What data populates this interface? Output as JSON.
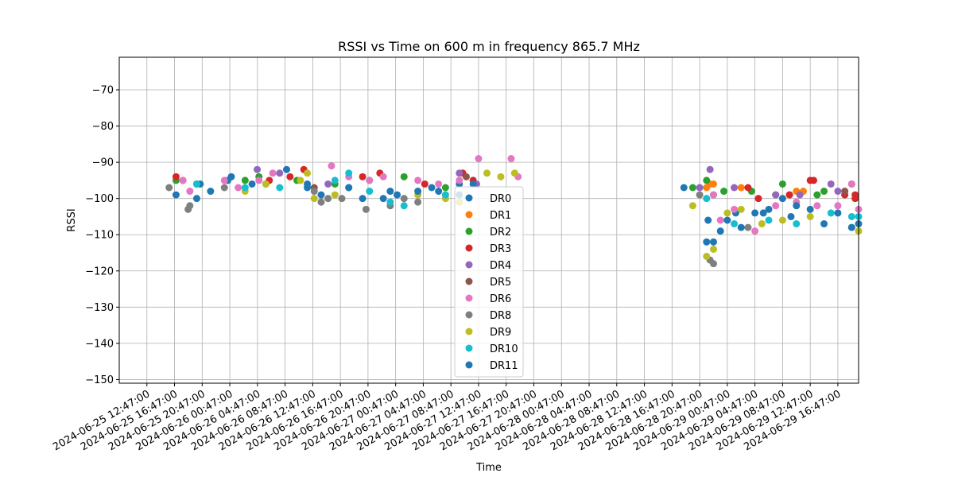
{
  "chart_data": {
    "type": "scatter",
    "title": "RSSI vs Time on 600 m in frequency 865.7 MHz",
    "xlabel": "Time",
    "ylabel": "RSSI",
    "grid": true,
    "legend_position": "center",
    "xlim": [
      "2024-06-25 08:47:00",
      "2024-06-29 19:47:00"
    ],
    "ylim": [
      -151,
      -61
    ],
    "yticks": [
      -150,
      -140,
      -130,
      -120,
      -110,
      -100,
      -90,
      -80,
      -70
    ],
    "xticks": [
      "2024-06-25 12:47:00",
      "2024-06-25 16:47:00",
      "2024-06-25 20:47:00",
      "2024-06-26 00:47:00",
      "2024-06-26 04:47:00",
      "2024-06-26 08:47:00",
      "2024-06-26 12:47:00",
      "2024-06-26 16:47:00",
      "2024-06-26 20:47:00",
      "2024-06-27 00:47:00",
      "2024-06-27 04:47:00",
      "2024-06-27 08:47:00",
      "2024-06-27 12:47:00",
      "2024-06-27 16:47:00",
      "2024-06-27 20:47:00",
      "2024-06-28 00:47:00",
      "2024-06-28 04:47:00",
      "2024-06-28 08:47:00",
      "2024-06-28 12:47:00",
      "2024-06-28 16:47:00",
      "2024-06-28 20:47:00",
      "2024-06-29 00:47:00",
      "2024-06-29 04:47:00",
      "2024-06-29 08:47:00",
      "2024-06-29 12:47:00",
      "2024-06-29 16:47:00"
    ],
    "series": [
      {
        "name": "DR0",
        "color": "#1f77b4",
        "points": [
          [
            "2024-06-25 20:30:00",
            -96
          ],
          [
            "2024-06-26 00:30:00",
            -95
          ],
          [
            "2024-06-26 06:00:00",
            -96
          ],
          [
            "2024-06-26 12:00:00",
            -97
          ],
          [
            "2024-06-26 18:00:00",
            -97
          ],
          [
            "2024-06-27 00:00:00",
            -98
          ],
          [
            "2024-06-27 06:00:00",
            -97
          ],
          [
            "2024-06-27 10:00:00",
            -96
          ],
          [
            "2024-06-28 18:30:00",
            -97
          ],
          [
            "2024-06-28 22:00:00",
            -106
          ],
          [
            "2024-06-29 02:00:00",
            -104
          ],
          [
            "2024-06-29 06:00:00",
            -104
          ],
          [
            "2024-06-29 10:00:00",
            -105
          ]
        ]
      },
      {
        "name": "DR1",
        "color": "#ff7f0e",
        "points": [
          [
            "2024-06-28 21:47:00",
            -97
          ],
          [
            "2024-06-28 22:17:00",
            -96
          ],
          [
            "2024-06-28 22:47:00",
            -96
          ],
          [
            "2024-06-29 02:47:00",
            -97
          ],
          [
            "2024-06-29 09:47:00",
            -99
          ],
          [
            "2024-06-29 10:47:00",
            -98
          ],
          [
            "2024-06-29 11:47:00",
            -98
          ]
        ]
      },
      {
        "name": "DR2",
        "color": "#2ca02c",
        "points": [
          [
            "2024-06-25 17:00:00",
            -95
          ],
          [
            "2024-06-25 20:00:00",
            -96
          ],
          [
            "2024-06-26 03:00:00",
            -95
          ],
          [
            "2024-06-26 05:00:00",
            -94
          ],
          [
            "2024-06-26 10:30:00",
            -95
          ],
          [
            "2024-06-26 16:00:00",
            -96
          ],
          [
            "2024-06-26 21:00:00",
            -95
          ],
          [
            "2024-06-27 02:00:00",
            -94
          ],
          [
            "2024-06-27 08:00:00",
            -97
          ],
          [
            "2024-06-27 12:00:00",
            -95
          ],
          [
            "2024-06-28 19:47:00",
            -97
          ],
          [
            "2024-06-28 21:47:00",
            -95
          ],
          [
            "2024-06-28 22:47:00",
            -99
          ],
          [
            "2024-06-29 00:17:00",
            -98
          ],
          [
            "2024-06-29 04:17:00",
            -98
          ],
          [
            "2024-06-29 07:47:00",
            -99
          ],
          [
            "2024-06-29 08:47:00",
            -96
          ],
          [
            "2024-06-29 13:47:00",
            -99
          ],
          [
            "2024-06-29 14:47:00",
            -98
          ]
        ]
      },
      {
        "name": "DR3",
        "color": "#d62728",
        "points": [
          [
            "2024-06-25 17:00:00",
            -94
          ],
          [
            "2024-06-26 06:30:00",
            -95
          ],
          [
            "2024-06-26 09:30:00",
            -94
          ],
          [
            "2024-06-26 11:30:00",
            -92
          ],
          [
            "2024-06-26 20:00:00",
            -94
          ],
          [
            "2024-06-26 22:30:00",
            -93
          ],
          [
            "2024-06-27 05:00:00",
            -96
          ],
          [
            "2024-06-27 10:30:00",
            -93
          ],
          [
            "2024-06-27 12:00:00",
            -95
          ],
          [
            "2024-06-29 03:47:00",
            -97
          ],
          [
            "2024-06-29 05:17:00",
            -100
          ],
          [
            "2024-06-29 09:47:00",
            -99
          ],
          [
            "2024-06-29 12:47:00",
            -95
          ],
          [
            "2024-06-29 13:17:00",
            -95
          ],
          [
            "2024-06-29 17:47:00",
            -99
          ],
          [
            "2024-06-29 18:47:00",
            -96
          ],
          [
            "2024-06-29 19:17:00",
            -99
          ],
          [
            "2024-06-29 19:17:00",
            -100
          ]
        ]
      },
      {
        "name": "DR4",
        "color": "#9467bd",
        "points": [
          [
            "2024-06-25 18:00:00",
            -95
          ],
          [
            "2024-06-26 04:45:00",
            -92
          ],
          [
            "2024-06-26 08:00:00",
            -93
          ],
          [
            "2024-06-26 15:00:00",
            -96
          ],
          [
            "2024-06-27 10:00:00",
            -93
          ],
          [
            "2024-06-27 12:30:00",
            -96
          ],
          [
            "2024-06-28 20:47:00",
            -97
          ],
          [
            "2024-06-28 22:17:00",
            -92
          ],
          [
            "2024-06-29 01:47:00",
            -97
          ],
          [
            "2024-06-29 07:47:00",
            -99
          ],
          [
            "2024-06-29 11:17:00",
            -99
          ],
          [
            "2024-06-29 15:47:00",
            -96
          ],
          [
            "2024-06-29 16:47:00",
            -98
          ]
        ]
      },
      {
        "name": "DR5",
        "color": "#8c564b",
        "points": [
          [
            "2024-06-26 13:00:00",
            -97
          ],
          [
            "2024-06-27 11:00:00",
            -94
          ],
          [
            "2024-06-29 17:47:00",
            -98
          ]
        ]
      },
      {
        "name": "DR6",
        "color": "#e377c2",
        "points": [
          [
            "2024-06-25 18:00:00",
            -95
          ],
          [
            "2024-06-25 19:00:00",
            -98
          ],
          [
            "2024-06-26 00:00:00",
            -95
          ],
          [
            "2024-06-26 02:00:00",
            -97
          ],
          [
            "2024-06-26 05:00:00",
            -95
          ],
          [
            "2024-06-26 07:00:00",
            -93
          ],
          [
            "2024-06-26 15:30:00",
            -91
          ],
          [
            "2024-06-26 18:00:00",
            -94
          ],
          [
            "2024-06-26 21:00:00",
            -95
          ],
          [
            "2024-06-26 23:00:00",
            -94
          ],
          [
            "2024-06-27 04:00:00",
            -95
          ],
          [
            "2024-06-27 07:00:00",
            -96
          ],
          [
            "2024-06-27 10:00:00",
            -95
          ],
          [
            "2024-06-27 12:47:00",
            -89
          ],
          [
            "2024-06-27 17:30:00",
            -89
          ],
          [
            "2024-06-27 18:30:00",
            -94
          ],
          [
            "2024-06-28 22:47:00",
            -99
          ],
          [
            "2024-06-28 23:47:00",
            -106
          ],
          [
            "2024-06-29 01:47:00",
            -103
          ],
          [
            "2024-06-29 04:47:00",
            -109
          ],
          [
            "2024-06-29 07:47:00",
            -102
          ],
          [
            "2024-06-29 10:47:00",
            -101
          ],
          [
            "2024-06-29 13:47:00",
            -102
          ],
          [
            "2024-06-29 16:47:00",
            -102
          ],
          [
            "2024-06-29 18:47:00",
            -96
          ],
          [
            "2024-06-29 19:47:00",
            -103
          ]
        ]
      },
      {
        "name": "DR8",
        "color": "#7f7f7f",
        "points": [
          [
            "2024-06-25 16:00:00",
            -97
          ],
          [
            "2024-06-25 18:45:00",
            -103
          ],
          [
            "2024-06-25 19:00:00",
            -102
          ],
          [
            "2024-06-25 20:00:00",
            -96
          ],
          [
            "2024-06-26 00:00:00",
            -97
          ],
          [
            "2024-06-26 13:00:00",
            -98
          ],
          [
            "2024-06-26 14:00:00",
            -101
          ],
          [
            "2024-06-26 15:00:00",
            -100
          ],
          [
            "2024-06-26 17:00:00",
            -100
          ],
          [
            "2024-06-26 20:30:00",
            -103
          ],
          [
            "2024-06-27 00:00:00",
            -102
          ],
          [
            "2024-06-27 02:00:00",
            -100
          ],
          [
            "2024-06-27 04:00:00",
            -101
          ],
          [
            "2024-06-28 20:47:00",
            -99
          ],
          [
            "2024-06-28 22:17:00",
            -117
          ],
          [
            "2024-06-28 22:47:00",
            -118
          ],
          [
            "2024-06-29 03:47:00",
            -108
          ]
        ]
      },
      {
        "name": "DR9",
        "color": "#bcbd22",
        "points": [
          [
            "2024-06-26 03:00:00",
            -98
          ],
          [
            "2024-06-26 06:00:00",
            -96
          ],
          [
            "2024-06-26 11:00:00",
            -95
          ],
          [
            "2024-06-26 12:00:00",
            -93
          ],
          [
            "2024-06-26 13:00:00",
            -100
          ],
          [
            "2024-06-26 16:00:00",
            -99
          ],
          [
            "2024-06-27 04:00:00",
            -99
          ],
          [
            "2024-06-27 08:00:00",
            -100
          ],
          [
            "2024-06-27 10:00:00",
            -101
          ],
          [
            "2024-06-27 14:00:00",
            -93
          ],
          [
            "2024-06-27 16:00:00",
            -94
          ],
          [
            "2024-06-27 18:00:00",
            -93
          ],
          [
            "2024-06-28 19:47:00",
            -102
          ],
          [
            "2024-06-28 21:47:00",
            -116
          ],
          [
            "2024-06-28 22:47:00",
            -114
          ],
          [
            "2024-06-29 00:47:00",
            -104
          ],
          [
            "2024-06-29 02:47:00",
            -103
          ],
          [
            "2024-06-29 05:47:00",
            -107
          ],
          [
            "2024-06-29 08:47:00",
            -106
          ],
          [
            "2024-06-29 12:47:00",
            -105
          ],
          [
            "2024-06-29 18:47:00",
            -108
          ],
          [
            "2024-06-29 19:47:00",
            -109
          ]
        ]
      },
      {
        "name": "DR10",
        "color": "#17becf",
        "points": [
          [
            "2024-06-25 20:00:00",
            -96
          ],
          [
            "2024-06-26 03:00:00",
            -97
          ],
          [
            "2024-06-26 08:00:00",
            -97
          ],
          [
            "2024-06-26 16:00:00",
            -95
          ],
          [
            "2024-06-26 18:00:00",
            -93
          ],
          [
            "2024-06-26 21:00:00",
            -98
          ],
          [
            "2024-06-27 00:00:00",
            -101
          ],
          [
            "2024-06-27 02:00:00",
            -102
          ],
          [
            "2024-06-27 08:00:00",
            -99
          ],
          [
            "2024-06-28 21:47:00",
            -100
          ],
          [
            "2024-06-29 01:47:00",
            -107
          ],
          [
            "2024-06-29 06:47:00",
            -106
          ],
          [
            "2024-06-29 10:47:00",
            -107
          ],
          [
            "2024-06-29 15:47:00",
            -104
          ],
          [
            "2024-06-29 18:47:00",
            -105
          ],
          [
            "2024-06-29 19:47:00",
            -105
          ]
        ]
      },
      {
        "name": "DR11",
        "color": "#1f77b4",
        "points": [
          [
            "2024-06-25 17:00:00",
            -99
          ],
          [
            "2024-06-25 20:00:00",
            -100
          ],
          [
            "2024-06-25 22:00:00",
            -98
          ],
          [
            "2024-06-26 01:00:00",
            -94
          ],
          [
            "2024-06-26 04:00:00",
            -96
          ],
          [
            "2024-06-26 09:00:00",
            -92
          ],
          [
            "2024-06-26 12:00:00",
            -96
          ],
          [
            "2024-06-26 14:00:00",
            -99
          ],
          [
            "2024-06-26 18:00:00",
            -97
          ],
          [
            "2024-06-26 20:00:00",
            -100
          ],
          [
            "2024-06-26 23:00:00",
            -100
          ],
          [
            "2024-06-27 01:00:00",
            -99
          ],
          [
            "2024-06-27 04:00:00",
            -98
          ],
          [
            "2024-06-27 07:00:00",
            -98
          ],
          [
            "2024-06-27 10:00:00",
            -99
          ],
          [
            "2024-06-27 12:00:00",
            -96
          ],
          [
            "2024-06-28 21:47:00",
            -112
          ],
          [
            "2024-06-28 22:47:00",
            -112
          ],
          [
            "2024-06-28 23:47:00",
            -109
          ],
          [
            "2024-06-29 00:47:00",
            -106
          ],
          [
            "2024-06-29 02:47:00",
            -108
          ],
          [
            "2024-06-29 04:47:00",
            -104
          ],
          [
            "2024-06-29 06:47:00",
            -103
          ],
          [
            "2024-06-29 08:47:00",
            -100
          ],
          [
            "2024-06-29 10:47:00",
            -102
          ],
          [
            "2024-06-29 12:47:00",
            -103
          ],
          [
            "2024-06-29 14:47:00",
            -107
          ],
          [
            "2024-06-29 16:47:00",
            -104
          ],
          [
            "2024-06-29 18:47:00",
            -108
          ],
          [
            "2024-06-29 19:47:00",
            -107
          ]
        ]
      }
    ]
  }
}
